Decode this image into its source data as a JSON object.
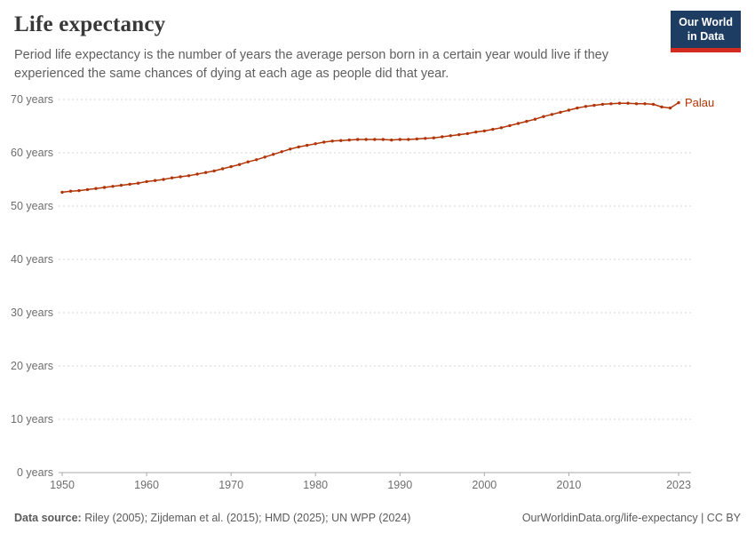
{
  "header": {
    "title": "Life expectancy",
    "subtitle": "Period life expectancy is the number of years the average person born in a certain year would live if they experienced the same chances of dying at each age as people did that year.",
    "logo": {
      "line1": "Our World",
      "line2": "in Data",
      "bg": "#1d3d63",
      "accent": "#d42b21"
    }
  },
  "chart_data": {
    "type": "line",
    "title": "Life expectancy",
    "xlabel": "",
    "ylabel": "",
    "xlim": [
      1950,
      2023
    ],
    "ylim": [
      0,
      70
    ],
    "grid": "horizontal-dashed",
    "x_ticks": [
      1950,
      1960,
      1970,
      1980,
      1990,
      2000,
      2010,
      2023
    ],
    "y_ticks": [
      0,
      10,
      20,
      30,
      40,
      50,
      60,
      70
    ],
    "y_tick_suffix": " years",
    "legend_position": "end-of-line-label",
    "series": [
      {
        "name": "Palau",
        "color": "#B13507",
        "x": [
          1950,
          1951,
          1952,
          1953,
          1954,
          1955,
          1956,
          1957,
          1958,
          1959,
          1960,
          1961,
          1962,
          1963,
          1964,
          1965,
          1966,
          1967,
          1968,
          1969,
          1970,
          1971,
          1972,
          1973,
          1974,
          1975,
          1976,
          1977,
          1978,
          1979,
          1980,
          1981,
          1982,
          1983,
          1984,
          1985,
          1986,
          1987,
          1988,
          1989,
          1990,
          1991,
          1992,
          1993,
          1994,
          1995,
          1996,
          1997,
          1998,
          1999,
          2000,
          2001,
          2002,
          2003,
          2004,
          2005,
          2006,
          2007,
          2008,
          2009,
          2010,
          2011,
          2012,
          2013,
          2014,
          2015,
          2016,
          2017,
          2018,
          2019,
          2020,
          2021,
          2022,
          2023
        ],
        "values": [
          52.6,
          52.8,
          52.9,
          53.1,
          53.3,
          53.5,
          53.7,
          53.9,
          54.1,
          54.3,
          54.6,
          54.8,
          55.0,
          55.3,
          55.5,
          55.7,
          56.0,
          56.3,
          56.6,
          57.0,
          57.4,
          57.8,
          58.3,
          58.7,
          59.2,
          59.7,
          60.2,
          60.7,
          61.1,
          61.4,
          61.7,
          62.0,
          62.2,
          62.3,
          62.4,
          62.5,
          62.5,
          62.5,
          62.5,
          62.4,
          62.5,
          62.5,
          62.6,
          62.7,
          62.8,
          63.0,
          63.2,
          63.4,
          63.6,
          63.9,
          64.1,
          64.4,
          64.7,
          65.1,
          65.5,
          65.9,
          66.3,
          66.8,
          67.2,
          67.6,
          68.0,
          68.4,
          68.7,
          68.9,
          69.1,
          69.2,
          69.3,
          69.3,
          69.2,
          69.2,
          69.1,
          68.6,
          68.4,
          69.4
        ]
      }
    ]
  },
  "axis_style": {
    "grid_color": "#d5d5d5",
    "axis_color": "#a9a9a9",
    "tick_label_color": "#6e6e6e"
  },
  "footer": {
    "source_label": "Data source:",
    "source_rest": " Riley (2005); Zijdeman et al. (2015); HMD (2025); UN WPP (2024)",
    "right_text": "OurWorldinData.org/life-expectancy | CC BY"
  }
}
